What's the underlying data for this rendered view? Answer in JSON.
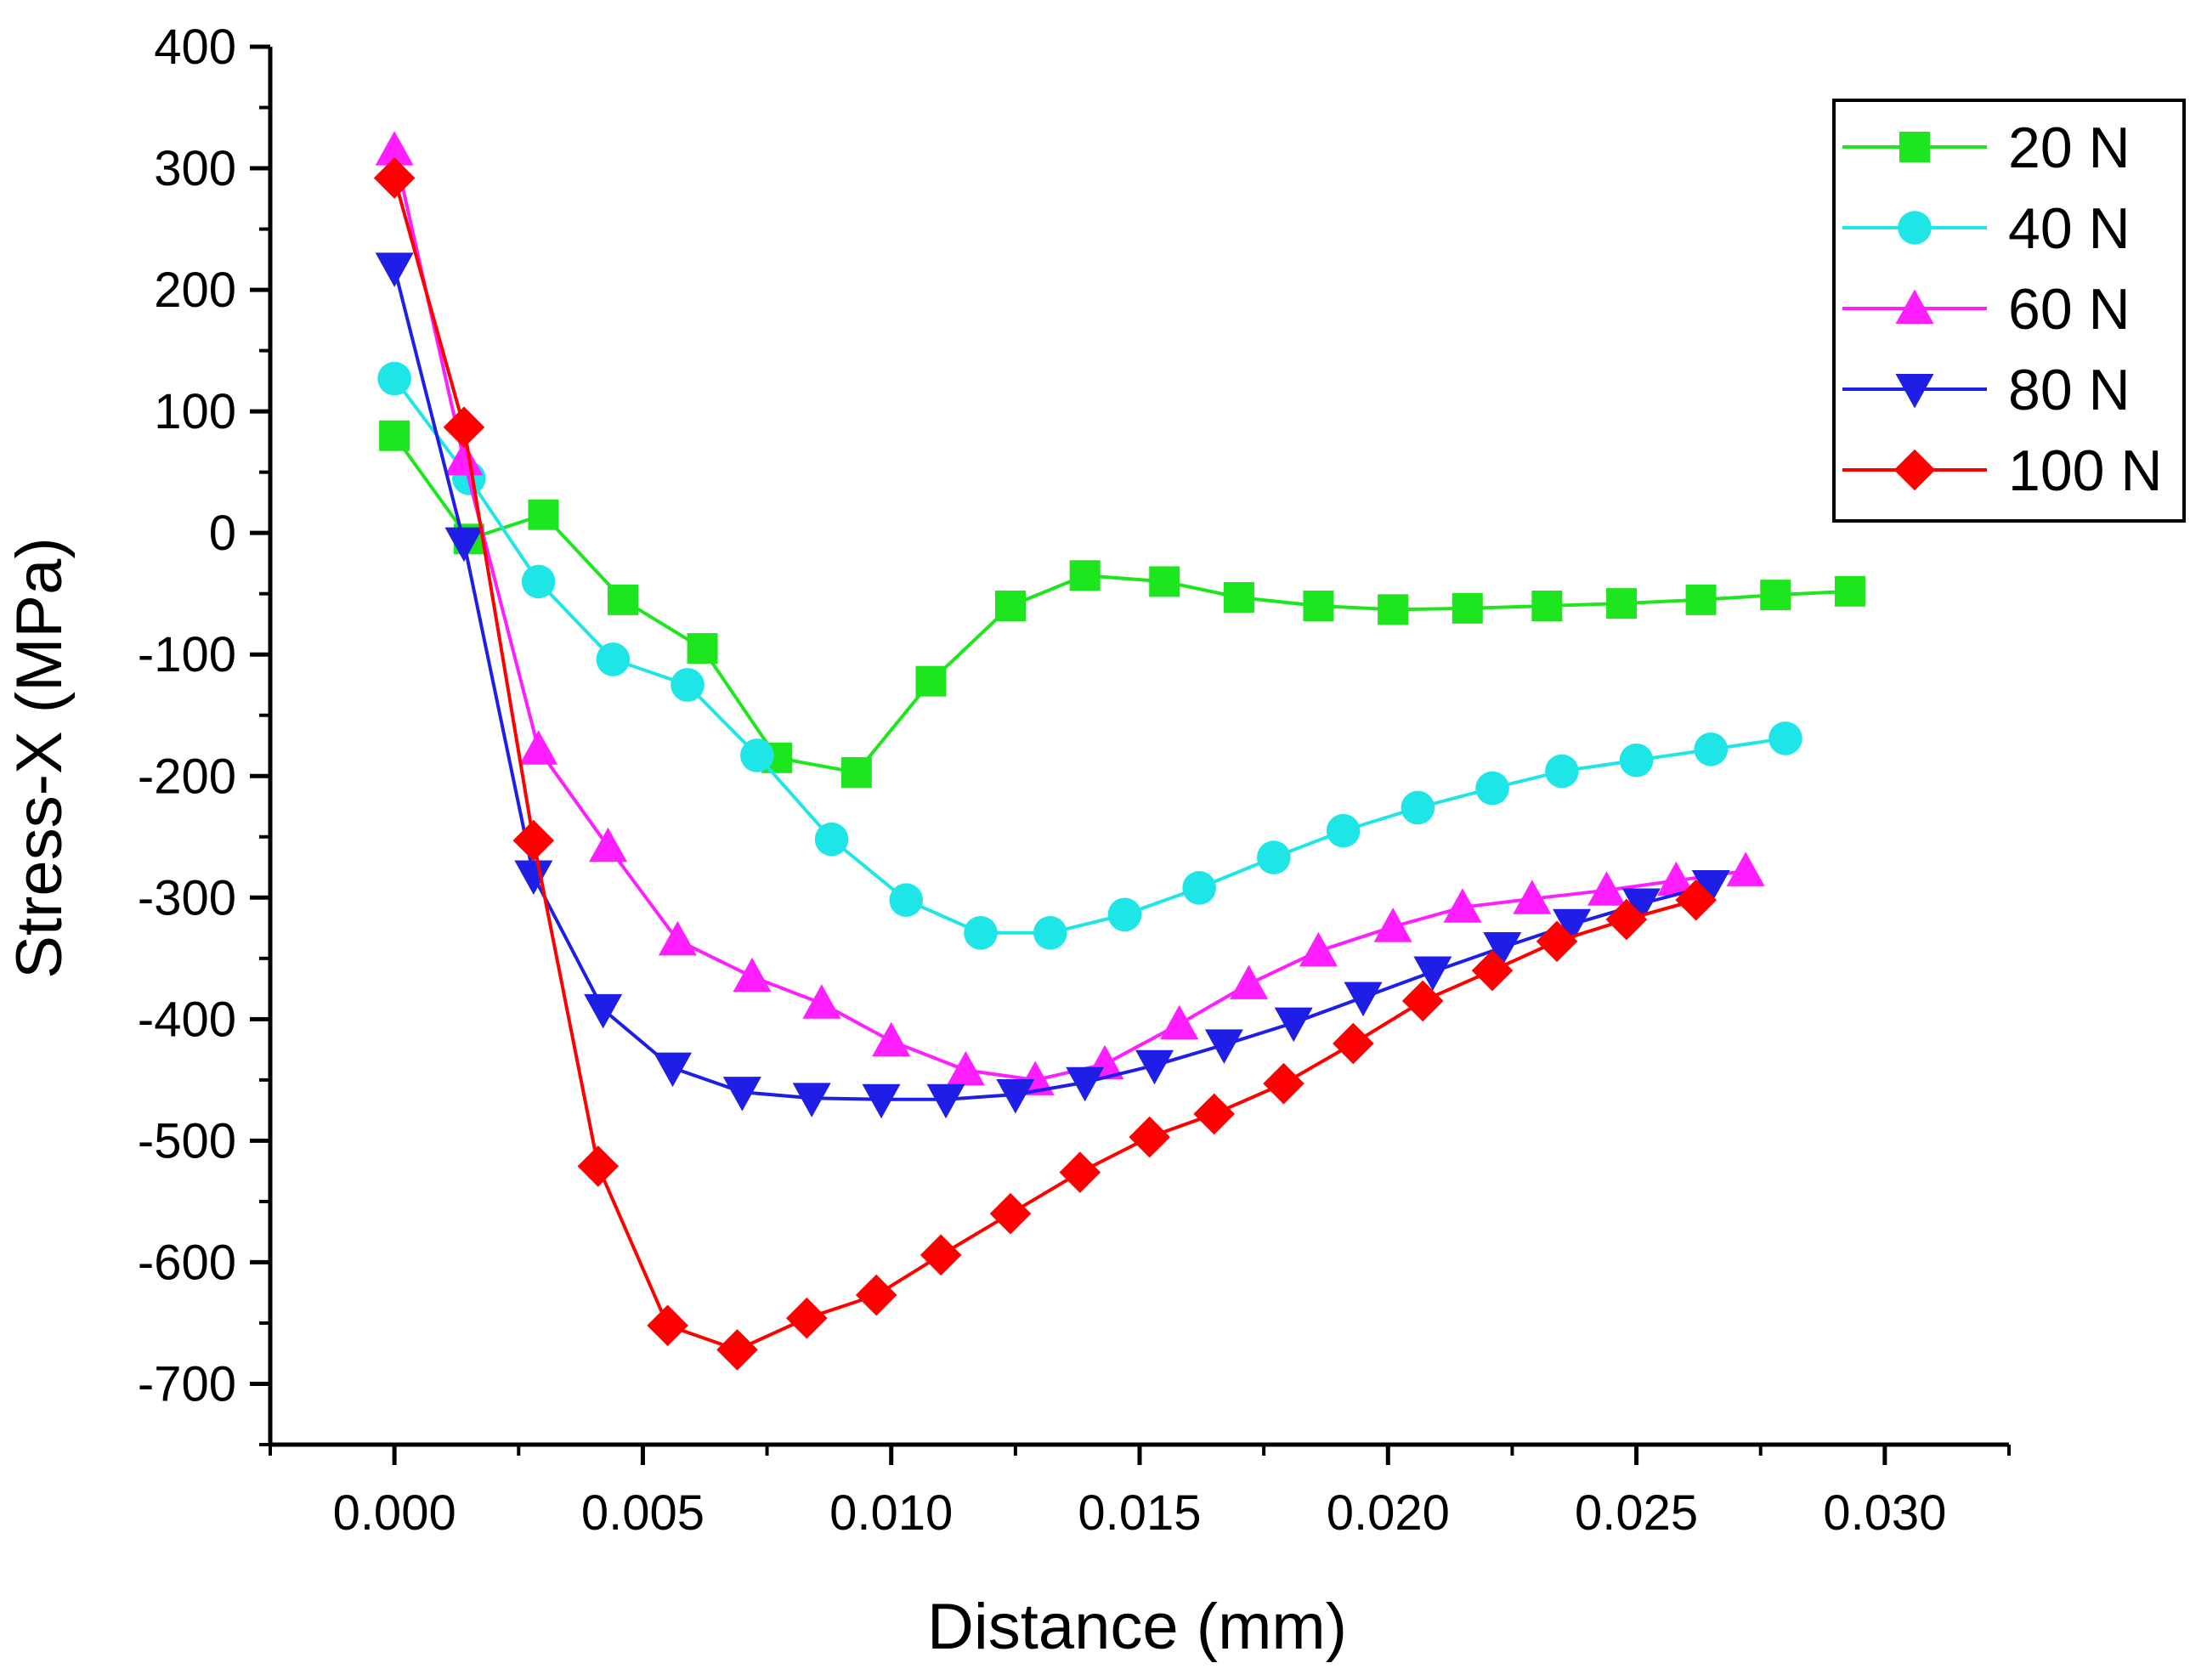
{
  "chart_data": {
    "type": "line",
    "xlabel": "Distance (mm)",
    "ylabel": "Stress-X (MPa)",
    "xlim": [
      -0.0025,
      0.0325
    ],
    "ylim": [
      -750,
      400
    ],
    "xticks": [
      0.0,
      0.005,
      0.01,
      0.015,
      0.02,
      0.025,
      0.03
    ],
    "xtick_labels": [
      "0.000",
      "0.005",
      "0.010",
      "0.015",
      "0.020",
      "0.025",
      "0.030"
    ],
    "yticks": [
      -700,
      -600,
      -500,
      -400,
      -300,
      -200,
      -100,
      0,
      100,
      200,
      300,
      400
    ],
    "ytick_labels": [
      "-700",
      "-600",
      "-500",
      "-400",
      "-300",
      "-200",
      "-100",
      "0",
      "100",
      "200",
      "300",
      "400"
    ],
    "grid": false,
    "legend_position": "top-right",
    "series": [
      {
        "name": "20 N",
        "color": "#1ee61e",
        "marker": "square",
        "x": [
          0.0,
          0.0015,
          0.003,
          0.0046,
          0.0062,
          0.0077,
          0.0093,
          0.0108,
          0.0124,
          0.0139,
          0.0155,
          0.017,
          0.0186,
          0.0201,
          0.0216,
          0.0232,
          0.0247,
          0.0263,
          0.0278,
          0.0293
        ],
        "y": [
          80,
          -5,
          15,
          -55,
          -95,
          -185,
          -197,
          -122,
          -60,
          -35,
          -40,
          -53,
          -60,
          -63,
          -62,
          -60,
          -58,
          -55,
          -51,
          -48
        ]
      },
      {
        "name": "40 N",
        "color": "#1ee6e6",
        "marker": "circle",
        "x": [
          0.0,
          0.0015,
          0.0029,
          0.0044,
          0.0059,
          0.0073,
          0.0088,
          0.0103,
          0.0118,
          0.0132,
          0.0147,
          0.0162,
          0.0177,
          0.0191,
          0.0206,
          0.0221,
          0.0235,
          0.025,
          0.0265,
          0.028
        ],
        "y": [
          127,
          45,
          -40,
          -104,
          -125,
          -183,
          -252,
          -302,
          -329,
          -329,
          -314,
          -292,
          -267,
          -245,
          -226,
          -210,
          -196,
          -187,
          -178,
          -169
        ]
      },
      {
        "name": "60 N",
        "color": "#ff1eff",
        "marker": "triangle-up",
        "x": [
          0.0,
          0.0014,
          0.0029,
          0.0043,
          0.0057,
          0.0072,
          0.0086,
          0.01,
          0.0115,
          0.0129,
          0.0143,
          0.0158,
          0.0172,
          0.0186,
          0.0201,
          0.0215,
          0.0229,
          0.0244,
          0.0258,
          0.0272
        ],
        "y": [
          315,
          60,
          -178,
          -258,
          -335,
          -365,
          -387,
          -418,
          -442,
          -450,
          -437,
          -404,
          -371,
          -344,
          -324,
          -308,
          -301,
          -294,
          -286,
          -278
        ]
      },
      {
        "name": "80 N",
        "color": "#1e1ee6",
        "marker": "triangle-down",
        "x": [
          0.0,
          0.0014,
          0.0028,
          0.0042,
          0.0056,
          0.007,
          0.0084,
          0.0098,
          0.0111,
          0.0125,
          0.0139,
          0.0153,
          0.0167,
          0.0181,
          0.0195,
          0.0209,
          0.0223,
          0.0237,
          0.0251,
          0.0265
        ],
        "y": [
          218,
          -8,
          -282,
          -392,
          -440,
          -460,
          -465,
          -466,
          -466,
          -462,
          -452,
          -438,
          -421,
          -403,
          -382,
          -361,
          -341,
          -322,
          -305,
          -290
        ]
      },
      {
        "name": "100 N",
        "color": "#ff0000",
        "marker": "diamond",
        "x": [
          0.0,
          0.0014,
          0.0028,
          0.0041,
          0.0055,
          0.0069,
          0.0083,
          0.0097,
          0.011,
          0.0124,
          0.0138,
          0.0152,
          0.0165,
          0.0179,
          0.0193,
          0.0207,
          0.0221,
          0.0234,
          0.0248,
          0.0262
        ],
        "y": [
          292,
          87,
          -253,
          -521,
          -652,
          -672,
          -646,
          -627,
          -594,
          -560,
          -526,
          -497,
          -478,
          -453,
          -420,
          -385,
          -360,
          -336,
          -318,
          -302
        ]
      }
    ]
  }
}
